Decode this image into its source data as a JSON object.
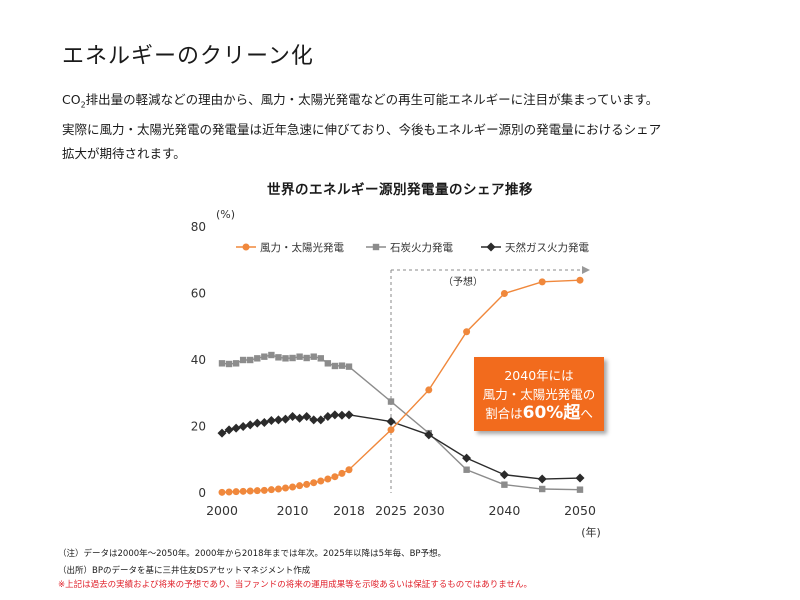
{
  "page": {
    "title": "エネルギーのクリーン化",
    "intro_line1_pre": "CO",
    "intro_line1_sub": "2",
    "intro_line1_post": "排出量の軽減などの理由から、風力・太陽光発電などの再生可能エネルギーに注目が集まっています。",
    "intro_line2": "実際に風力・太陽光発電の発電量は近年急速に伸びており、今後もエネルギー源別の発電量におけるシェア",
    "intro_line3": "拡大が期待されます。"
  },
  "callout": {
    "line1": "2040年には",
    "line2": "風力・太陽光発電の",
    "line3_pre": "割合は",
    "line3_big": "60%超",
    "line3_post": "へ"
  },
  "notes": {
    "note1": "（注）データは2000年～2050年。2000年から2018年までは年次。2025年以降は5年毎、BP予想。",
    "note2": "（出所）BPのデータを基に三井住友DSアセットマネジメント作成",
    "disclaimer": "※上記は過去の実績および将来の予想であり、当ファンドの将来の運用成果等を示唆あるいは保証するものではありません。"
  },
  "colors": {
    "wind_solar": "#f0883c",
    "coal": "#8c8c8c",
    "gas": "#2b2b2b",
    "callout": "#f26b1d",
    "disclaimer": "#e0202a"
  },
  "chart_data": {
    "type": "line",
    "title": "世界のエネルギー源別発電量のシェア推移",
    "y_unit": "(%)",
    "x_unit": "(年)",
    "ylim": [
      0,
      80
    ],
    "yticks": [
      0,
      20,
      40,
      60,
      80
    ],
    "xticks": [
      "2000",
      "2010",
      "2018",
      "2025",
      "2030",
      "2040",
      "2050"
    ],
    "forecast_label": "（予想）",
    "grid": false,
    "legend_position": "top-right",
    "series": [
      {
        "name": "風力・太陽光発電",
        "x": [
          2000,
          2001,
          2002,
          2003,
          2004,
          2005,
          2006,
          2007,
          2008,
          2009,
          2010,
          2011,
          2012,
          2013,
          2014,
          2015,
          2016,
          2017,
          2018,
          2025,
          2030,
          2035,
          2040,
          2045,
          2050
        ],
        "values": [
          0.2,
          0.3,
          0.4,
          0.5,
          0.6,
          0.7,
          0.8,
          1.0,
          1.2,
          1.5,
          1.8,
          2.2,
          2.6,
          3.1,
          3.6,
          4.2,
          4.9,
          5.9,
          7.0,
          19,
          31,
          48.5,
          60,
          63.5,
          64
        ]
      },
      {
        "name": "石炭火力発電",
        "x": [
          2000,
          2001,
          2002,
          2003,
          2004,
          2005,
          2006,
          2007,
          2008,
          2009,
          2010,
          2011,
          2012,
          2013,
          2014,
          2015,
          2016,
          2017,
          2018,
          2025,
          2030,
          2035,
          2040,
          2045,
          2050
        ],
        "values": [
          39,
          38.8,
          39,
          40,
          40,
          40.5,
          41,
          41.5,
          40.8,
          40.5,
          40.6,
          41,
          40.6,
          41,
          40.5,
          39,
          38.2,
          38.3,
          38,
          27.5,
          18,
          7,
          2.5,
          1.2,
          1
        ]
      },
      {
        "name": "天然ガス火力発電",
        "x": [
          2000,
          2001,
          2002,
          2003,
          2004,
          2005,
          2006,
          2007,
          2008,
          2009,
          2010,
          2011,
          2012,
          2013,
          2014,
          2015,
          2016,
          2017,
          2018,
          2025,
          2030,
          2035,
          2040,
          2045,
          2050
        ],
        "values": [
          18,
          19,
          19.5,
          20,
          20.5,
          21,
          21.2,
          21.8,
          22,
          22.2,
          23,
          22.5,
          23,
          22,
          22,
          23,
          23.5,
          23.4,
          23.5,
          21.5,
          17.5,
          10.5,
          5.5,
          4.2,
          4.5
        ]
      }
    ]
  }
}
